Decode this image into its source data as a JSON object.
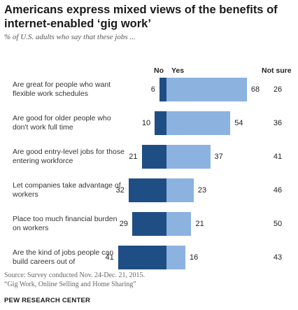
{
  "header": {
    "title": "Americans express mixed views of the benefits of internet-enabled ‘gig work’",
    "subtitle": "% of U.S. adults who say that these jobs ..."
  },
  "chart_data": {
    "type": "bar",
    "orientation": "horizontal-diverging",
    "column_headers": {
      "no": "No",
      "yes": "Yes",
      "not_sure": "Not sure"
    },
    "categories": [
      "Are great for people who want flexible work schedules",
      "Are good for older people who don't work full time",
      "Are good entry-level jobs for those entering workforce",
      "Let companies take advantage of workers",
      "Place too much financial burden on workers",
      "Are the kind of jobs people can build careers out of"
    ],
    "series": [
      {
        "name": "No",
        "values": [
          6,
          10,
          21,
          32,
          29,
          41
        ],
        "color": "#1f4e84"
      },
      {
        "name": "Yes",
        "values": [
          68,
          54,
          37,
          23,
          21,
          16
        ],
        "color": "#8cb2e0"
      },
      {
        "name": "Not sure",
        "values": [
          26,
          36,
          41,
          46,
          50,
          43
        ]
      }
    ]
  },
  "footer": {
    "source_line1": "Source: Survey conducted Nov. 24-Dec. 21, 2015.",
    "source_line2": "“Gig Work, Online Selling and Home Sharing”",
    "logo": "PEW RESEARCH CENTER"
  }
}
